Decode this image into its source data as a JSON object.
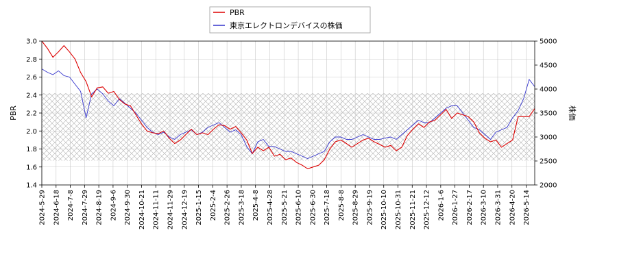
{
  "chart_data": {
    "type": "line",
    "x_ticks": [
      "2024-5-29",
      "2024-6-18",
      "2024-7-8",
      "2024-7-29",
      "2024-8-19",
      "2024-9-6",
      "2024-9-30",
      "2024-10-21",
      "2024-11-11",
      "2024-11-29",
      "2024-12-19",
      "2025-1-15",
      "2025-2-4",
      "2025-2-26",
      "2025-3-18",
      "2025-4-8",
      "2025-4-28",
      "2025-5-21",
      "2025-6-10",
      "2025-6-30",
      "2025-7-18",
      "2025-8-8",
      "2025-8-29",
      "2025-9-19",
      "2025-10-10",
      "2025-10-31",
      "2025-11-21",
      "2025-12-12",
      "2026-1-6",
      "2026-1-27",
      "2026-2-17",
      "2026-3-10",
      "2026-3-31",
      "2026-4-20",
      "2026-5-14"
    ],
    "left_axis": {
      "label": "PBR",
      "ylim": [
        1.4,
        3.0
      ],
      "ticks": [
        "1.4",
        "1.6",
        "1.8",
        "2.0",
        "2.2",
        "2.4",
        "2.6",
        "2.8",
        "3.0"
      ]
    },
    "right_axis": {
      "label": "株価",
      "ylim": [
        2000,
        5000
      ],
      "ticks": [
        "2000",
        "2500",
        "3000",
        "3500",
        "4000",
        "4500",
        "5000"
      ]
    },
    "band": {
      "axis": "left",
      "from": 1.67,
      "to": 2.42
    },
    "grid": true,
    "legend_position": "top-center",
    "series": [
      {
        "name": "PBR",
        "axis": "left",
        "color": "#dd0000",
        "values": [
          3.0,
          2.92,
          2.82,
          2.88,
          2.95,
          2.88,
          2.8,
          2.65,
          2.55,
          2.38,
          2.48,
          2.49,
          2.42,
          2.44,
          2.35,
          2.3,
          2.28,
          2.18,
          2.08,
          2.0,
          1.98,
          1.97,
          2.0,
          1.92,
          1.86,
          1.9,
          1.96,
          2.02,
          1.96,
          1.98,
          1.96,
          2.02,
          2.07,
          2.06,
          2.02,
          2.05,
          1.98,
          1.9,
          1.75,
          1.82,
          1.78,
          1.82,
          1.72,
          1.74,
          1.68,
          1.7,
          1.65,
          1.62,
          1.58,
          1.6,
          1.62,
          1.68,
          1.8,
          1.88,
          1.9,
          1.86,
          1.82,
          1.86,
          1.9,
          1.92,
          1.88,
          1.85,
          1.82,
          1.84,
          1.78,
          1.82,
          1.95,
          2.02,
          2.08,
          2.04,
          2.1,
          2.12,
          2.18,
          2.24,
          2.14,
          2.2,
          2.18,
          2.16,
          2.1,
          1.98,
          1.92,
          1.88,
          1.9,
          1.82,
          1.86,
          1.9,
          2.16,
          2.16,
          2.16,
          2.25
        ]
      },
      {
        "name": "東京エレクトロンデバイスの株価",
        "axis": "right",
        "color": "#3333cc",
        "values": [
          4420,
          4350,
          4300,
          4380,
          4280,
          4250,
          4100,
          3950,
          3400,
          3900,
          4000,
          3900,
          3750,
          3650,
          3800,
          3700,
          3600,
          3500,
          3350,
          3200,
          3100,
          3050,
          3100,
          3000,
          2950,
          3050,
          3100,
          3150,
          3050,
          3100,
          3200,
          3250,
          3300,
          3200,
          3100,
          3150,
          3050,
          2800,
          2650,
          2900,
          2950,
          2800,
          2800,
          2750,
          2700,
          2700,
          2650,
          2600,
          2550,
          2600,
          2650,
          2700,
          2900,
          3000,
          3000,
          2950,
          2950,
          3000,
          3050,
          3000,
          2950,
          2950,
          2980,
          3000,
          2950,
          3050,
          3150,
          3250,
          3350,
          3300,
          3300,
          3400,
          3500,
          3600,
          3650,
          3650,
          3500,
          3350,
          3200,
          3150,
          3050,
          2950,
          3100,
          3150,
          3200,
          3400,
          3550,
          3800,
          4200,
          4050
        ]
      }
    ]
  }
}
